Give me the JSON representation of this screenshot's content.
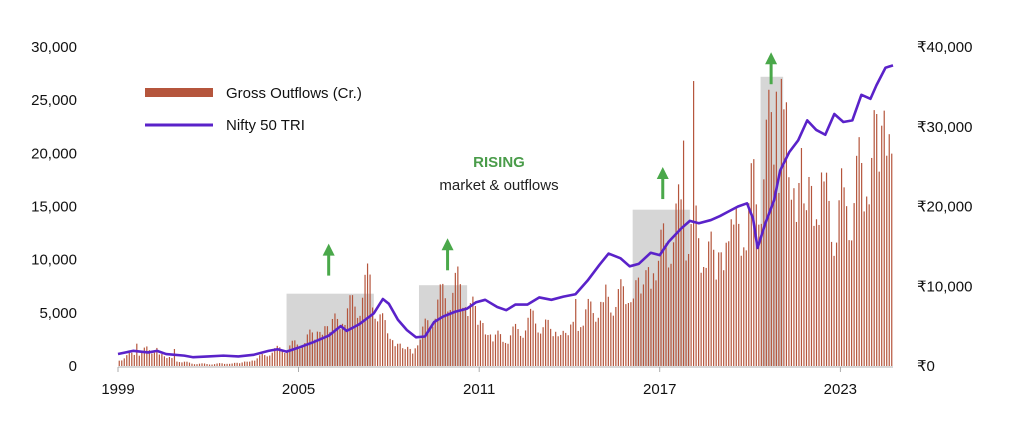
{
  "chart_data": {
    "type": "bar",
    "title": "",
    "xlabel": "",
    "ylabel": "",
    "x_ticks": [
      "1999",
      "2005",
      "2011",
      "2017",
      "2023"
    ],
    "y_left": {
      "lim": [
        0,
        30000
      ],
      "ticks": [
        0,
        5000,
        10000,
        15000,
        20000,
        25000,
        30000
      ],
      "tick_labels": [
        "0",
        "5,000",
        "10,000",
        "15,000",
        "20,000",
        "25,000",
        "30,000"
      ]
    },
    "y_right": {
      "lim": [
        0,
        40000
      ],
      "ticks": [
        0,
        10000,
        20000,
        30000,
        40000
      ],
      "tick_labels": [
        "₹0",
        "₹10,000",
        "₹20,000",
        "₹30,000",
        "₹40,000"
      ]
    },
    "x_range": [
      1999.0,
      2024.75
    ],
    "legend_placement": "top-left",
    "series": [
      {
        "name": "Gross Outflows (Cr.)",
        "kind": "bar",
        "axis": "left",
        "color": "#b5553c",
        "anchors": [
          [
            1999.0,
            500
          ],
          [
            2000.0,
            1400
          ],
          [
            2000.5,
            900
          ],
          [
            2001.0,
            400
          ],
          [
            2001.5,
            200
          ],
          [
            2002.0,
            150
          ],
          [
            2002.5,
            200
          ],
          [
            2003.0,
            250
          ],
          [
            2003.5,
            500
          ],
          [
            2004.0,
            1100
          ],
          [
            2004.5,
            1400
          ],
          [
            2005.0,
            1800
          ],
          [
            2005.5,
            2800
          ],
          [
            2006.0,
            3500
          ],
          [
            2006.5,
            4200
          ],
          [
            2007.0,
            5200
          ],
          [
            2007.3,
            6500
          ],
          [
            2007.8,
            3500
          ],
          [
            2008.3,
            1800
          ],
          [
            2008.8,
            1300
          ],
          [
            2009.3,
            3600
          ],
          [
            2009.8,
            5500
          ],
          [
            2010.3,
            6500
          ],
          [
            2010.8,
            5000
          ],
          [
            2011.3,
            2800
          ],
          [
            2011.8,
            2300
          ],
          [
            2012.3,
            2800
          ],
          [
            2012.8,
            3800
          ],
          [
            2013.3,
            3200
          ],
          [
            2013.8,
            2800
          ],
          [
            2014.3,
            3600
          ],
          [
            2014.8,
            4800
          ],
          [
            2015.3,
            5300
          ],
          [
            2015.8,
            5800
          ],
          [
            2016.3,
            6800
          ],
          [
            2016.8,
            8300
          ],
          [
            2017.3,
            10800
          ],
          [
            2017.8,
            11800
          ],
          [
            2018.3,
            10300
          ],
          [
            2018.8,
            9300
          ],
          [
            2019.3,
            10800
          ],
          [
            2019.8,
            11800
          ],
          [
            2020.3,
            14800
          ],
          [
            2020.8,
            18800
          ],
          [
            2021.3,
            16800
          ],
          [
            2021.8,
            14800
          ],
          [
            2022.3,
            13800
          ],
          [
            2022.8,
            11800
          ],
          [
            2023.3,
            13300
          ],
          [
            2023.8,
            15800
          ],
          [
            2024.2,
            19500
          ],
          [
            2024.5,
            21000
          ],
          [
            2024.7,
            18500
          ]
        ],
        "spikes": [
          [
            1999.6,
            2100
          ],
          [
            2000.3,
            1700
          ],
          [
            2000.9,
            1600
          ],
          [
            2007.4,
            8600
          ],
          [
            2010.5,
            9300
          ],
          [
            2014.2,
            6300
          ],
          [
            2015.1,
            6000
          ],
          [
            2016.6,
            9300
          ],
          [
            2017.5,
            13200
          ],
          [
            2017.8,
            21200
          ],
          [
            2018.15,
            26800
          ],
          [
            2019.4,
            13800
          ],
          [
            2020.2,
            15200
          ],
          [
            2020.9,
            25800
          ],
          [
            2021.05,
            27000
          ],
          [
            2021.2,
            24800
          ],
          [
            2021.7,
            20500
          ],
          [
            2022.4,
            18200
          ],
          [
            2023.1,
            16800
          ],
          [
            2024.4,
            22600
          ],
          [
            2024.6,
            21800
          ]
        ]
      },
      {
        "name": "Nifty 50 TRI",
        "kind": "line",
        "axis": "right",
        "color": "#5a22c9",
        "points": [
          [
            1999.0,
            1500
          ],
          [
            1999.5,
            1900
          ],
          [
            2000.0,
            1700
          ],
          [
            2000.3,
            1900
          ],
          [
            2000.6,
            1500
          ],
          [
            2001.2,
            1300
          ],
          [
            2001.5,
            1100
          ],
          [
            2002.0,
            1200
          ],
          [
            2002.5,
            1300
          ],
          [
            2003.0,
            1200
          ],
          [
            2003.5,
            1400
          ],
          [
            2004.0,
            1900
          ],
          [
            2004.3,
            2100
          ],
          [
            2004.6,
            1800
          ],
          [
            2005.0,
            2300
          ],
          [
            2005.5,
            3000
          ],
          [
            2006.0,
            3800
          ],
          [
            2006.4,
            5000
          ],
          [
            2006.6,
            4400
          ],
          [
            2007.0,
            5200
          ],
          [
            2007.5,
            6600
          ],
          [
            2007.8,
            8400
          ],
          [
            2008.0,
            7800
          ],
          [
            2008.3,
            5800
          ],
          [
            2008.6,
            4500
          ],
          [
            2008.9,
            3600
          ],
          [
            2009.2,
            3700
          ],
          [
            2009.5,
            5500
          ],
          [
            2009.8,
            6200
          ],
          [
            2010.2,
            6800
          ],
          [
            2010.6,
            7200
          ],
          [
            2010.9,
            8000
          ],
          [
            2011.2,
            8300
          ],
          [
            2011.6,
            7400
          ],
          [
            2011.9,
            7000
          ],
          [
            2012.2,
            7700
          ],
          [
            2012.6,
            7700
          ],
          [
            2013.0,
            8600
          ],
          [
            2013.4,
            8300
          ],
          [
            2013.8,
            8700
          ],
          [
            2014.2,
            9000
          ],
          [
            2014.6,
            10700
          ],
          [
            2015.0,
            12700
          ],
          [
            2015.3,
            14100
          ],
          [
            2015.7,
            13500
          ],
          [
            2016.0,
            12500
          ],
          [
            2016.3,
            12800
          ],
          [
            2016.7,
            14200
          ],
          [
            2017.0,
            13900
          ],
          [
            2017.3,
            15600
          ],
          [
            2017.7,
            17200
          ],
          [
            2018.0,
            18200
          ],
          [
            2018.3,
            17900
          ],
          [
            2018.7,
            18300
          ],
          [
            2019.0,
            18800
          ],
          [
            2019.3,
            19400
          ],
          [
            2019.6,
            20000
          ],
          [
            2019.9,
            20400
          ],
          [
            2020.1,
            18500
          ],
          [
            2020.25,
            14800
          ],
          [
            2020.5,
            17800
          ],
          [
            2020.8,
            20800
          ],
          [
            2021.0,
            24500
          ],
          [
            2021.3,
            26800
          ],
          [
            2021.6,
            28300
          ],
          [
            2021.9,
            30800
          ],
          [
            2022.2,
            29600
          ],
          [
            2022.5,
            29000
          ],
          [
            2022.8,
            31600
          ],
          [
            2023.1,
            30600
          ],
          [
            2023.4,
            30800
          ],
          [
            2023.7,
            34000
          ],
          [
            2024.0,
            33500
          ],
          [
            2024.2,
            35200
          ],
          [
            2024.5,
            37400
          ],
          [
            2024.75,
            37700
          ]
        ]
      }
    ],
    "highlights": [
      [
        2004.6,
        2007.5,
        6800
      ],
      [
        2009.0,
        2010.6,
        7600
      ],
      [
        2016.1,
        2018.0,
        14700
      ],
      [
        2020.35,
        2021.1,
        27200
      ]
    ],
    "arrows": [
      [
        2006.0,
        8500
      ],
      [
        2009.95,
        9000
      ],
      [
        2017.1,
        15700
      ],
      [
        2020.7,
        26500
      ]
    ],
    "annotation": {
      "strong": "RISING",
      "sub": "market & outflows",
      "strong_color": "#4a9c4a"
    },
    "colors": {
      "highlight_fill": "#d6d6d6",
      "arrow_color": "#4aa84a"
    }
  }
}
